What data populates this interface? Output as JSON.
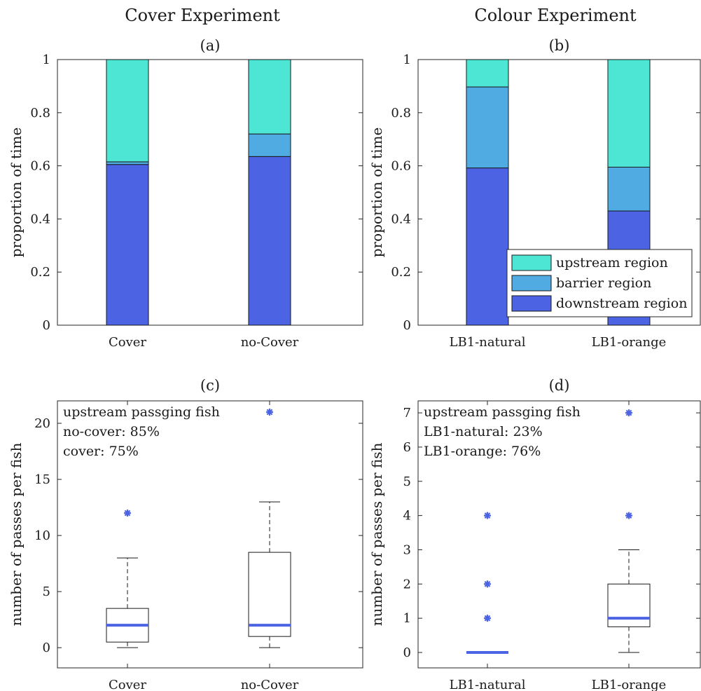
{
  "figure_titles": {
    "left": "Cover Experiment",
    "right": "Colour Experiment"
  },
  "colors": {
    "upstream": "#4de5d4",
    "barrier": "#4fabe2",
    "downstream": "#4c63e4",
    "median": "#4c63e4",
    "outlier": "#4c63e4"
  },
  "chart_data": [
    {
      "id": "a",
      "type": "bar",
      "stacked": true,
      "title": "(a)",
      "ylabel": "proportion of time",
      "categories": [
        "Cover",
        "no-Cover"
      ],
      "ylim": [
        0,
        1
      ],
      "yticks": [
        0,
        0.2,
        0.4,
        0.6,
        0.8,
        1
      ],
      "ytick_labels": [
        "0",
        "0.2",
        "0.4",
        "0.6",
        "0.8",
        "1"
      ],
      "series": [
        {
          "name": "downstream region",
          "values": [
            0.605,
            0.635
          ]
        },
        {
          "name": "barrier region",
          "values": [
            0.01,
            0.085
          ]
        },
        {
          "name": "upstream region",
          "values": [
            0.385,
            0.28
          ]
        }
      ]
    },
    {
      "id": "b",
      "type": "bar",
      "stacked": true,
      "title": "(b)",
      "ylabel": "proportion of time",
      "categories": [
        "LB1-natural",
        "LB1-orange"
      ],
      "ylim": [
        0,
        1
      ],
      "yticks": [
        0,
        0.2,
        0.4,
        0.6,
        0.8,
        1
      ],
      "ytick_labels": [
        "0",
        "0.2",
        "0.4",
        "0.6",
        "0.8",
        "1"
      ],
      "legend": {
        "position": "bottom-right",
        "entries": [
          "upstream region",
          "barrier region",
          "downstream region"
        ]
      },
      "series": [
        {
          "name": "downstream region",
          "values": [
            0.592,
            0.43
          ]
        },
        {
          "name": "barrier region",
          "values": [
            0.305,
            0.165
          ]
        },
        {
          "name": "upstream region",
          "values": [
            0.103,
            0.405
          ]
        }
      ]
    },
    {
      "id": "c",
      "type": "box",
      "title": "(c)",
      "ylabel": "number of passes per fish",
      "categories": [
        "Cover",
        "no-Cover"
      ],
      "ylim": [
        -1.8,
        22
      ],
      "yticks": [
        0,
        5,
        10,
        15,
        20
      ],
      "ytick_labels": [
        "0",
        "5",
        "10",
        "15",
        "20"
      ],
      "annotation": [
        "upstream passging fish",
        "no-cover:  85%",
        "cover:  75%"
      ],
      "boxes": [
        {
          "category": "Cover",
          "min": 0,
          "q1": 0.5,
          "median": 2,
          "q3": 3.5,
          "max": 8,
          "outliers": [
            12
          ]
        },
        {
          "category": "no-Cover",
          "min": 0,
          "q1": 1,
          "median": 2,
          "q3": 8.5,
          "max": 13,
          "outliers": [
            21
          ]
        }
      ]
    },
    {
      "id": "d",
      "type": "box",
      "title": "(d)",
      "ylabel": "number of passes per fish",
      "categories": [
        "LB1-natural",
        "LB1-orange"
      ],
      "ylim": [
        -0.45,
        7.35
      ],
      "yticks": [
        0,
        1,
        2,
        3,
        4,
        5,
        6,
        7
      ],
      "ytick_labels": [
        "0",
        "1",
        "2",
        "3",
        "4",
        "5",
        "6",
        "7"
      ],
      "annotation": [
        "upstream passging fish",
        "LB1-natural:  23%",
        "LB1-orange:  76%"
      ],
      "boxes": [
        {
          "category": "LB1-natural",
          "min": 0,
          "q1": 0,
          "median": 0,
          "q3": 0,
          "max": 0,
          "outliers": [
            1,
            2,
            4
          ]
        },
        {
          "category": "LB1-orange",
          "min": 0,
          "q1": 0.75,
          "median": 1,
          "q3": 2,
          "max": 3,
          "outliers": [
            4,
            7
          ]
        }
      ]
    }
  ]
}
